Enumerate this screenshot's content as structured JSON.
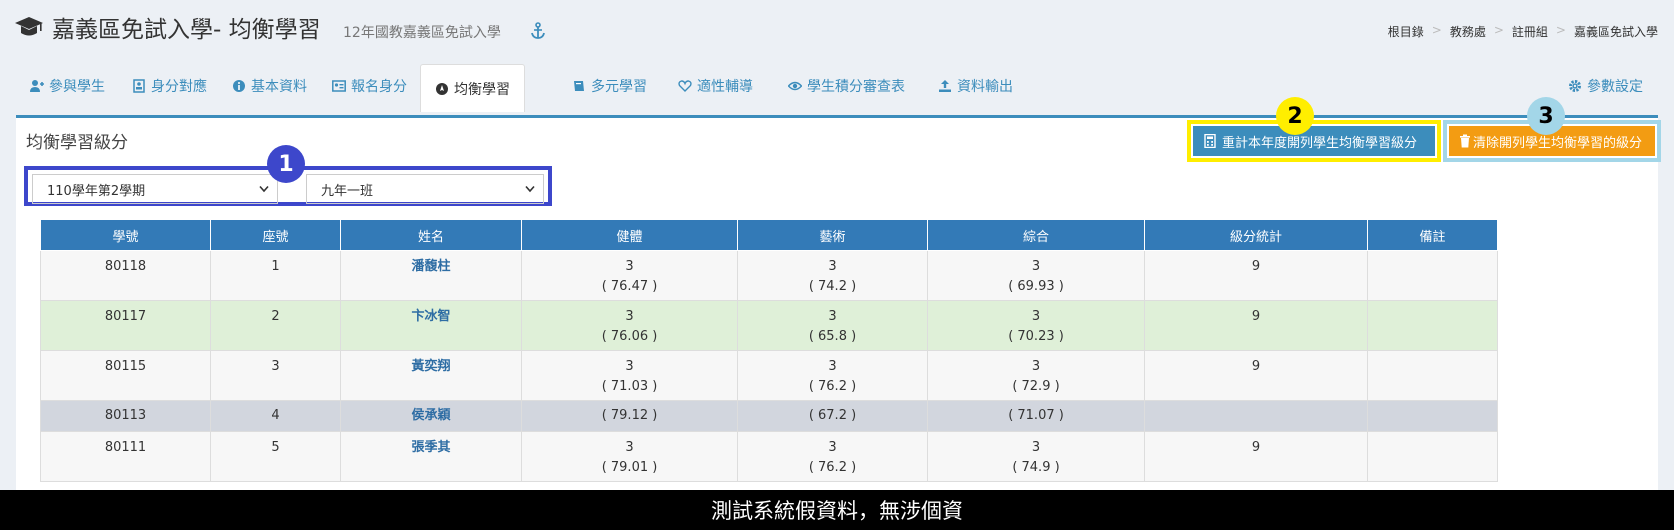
{
  "header": {
    "title": "嘉義區免試入學- 均衡學習",
    "subtitle": "12年國教嘉義區免試入學",
    "breadcrumb": [
      "根目錄",
      "教務處",
      "註冊組",
      "嘉義區免試入學"
    ]
  },
  "tabs": [
    {
      "label": "參與學生",
      "icon": "users-icon"
    },
    {
      "label": "身分對應",
      "icon": "id-card-icon"
    },
    {
      "label": "基本資料",
      "icon": "info-icon"
    },
    {
      "label": "報名身分",
      "icon": "vcard-icon"
    },
    {
      "label": "均衡學習",
      "icon": "compass-icon",
      "active": true
    },
    {
      "label": "多元學習",
      "icon": "book-icon"
    },
    {
      "label": "適性輔導",
      "icon": "heart-icon"
    },
    {
      "label": "學生積分審查表",
      "icon": "eye-icon"
    },
    {
      "label": "資料輸出",
      "icon": "upload-icon"
    },
    {
      "label": "參數設定",
      "icon": "gear-icon"
    }
  ],
  "panel": {
    "title": "均衡學習級分",
    "recalc_button": "重計本年度開列學生均衡學習級分",
    "clear_button": "清除開列學生均衡學習的級分",
    "term_select": "110學年第2學期",
    "class_select": "九年一班"
  },
  "badges": [
    "1",
    "2",
    "3"
  ],
  "table": {
    "headers": [
      "學號",
      "座號",
      "姓名",
      "健體",
      "藝術",
      "綜合",
      "級分統計",
      "備註"
    ],
    "rows": [
      {
        "id": "80118",
        "seat": "1",
        "name": "潘馥柱",
        "pe": "3",
        "pe_score": "( 76.47 )",
        "art": "3",
        "art_score": "( 74.2 )",
        "ip": "3",
        "ip_score": "( 69.93 )",
        "total": "9",
        "note": ""
      },
      {
        "id": "80117",
        "seat": "2",
        "name": "卞冰智",
        "pe": "3",
        "pe_score": "( 76.06 )",
        "art": "3",
        "art_score": "( 65.8 )",
        "ip": "3",
        "ip_score": "( 70.23 )",
        "total": "9",
        "note": ""
      },
      {
        "id": "80115",
        "seat": "3",
        "name": "黃奕翔",
        "pe": "3",
        "pe_score": "( 71.03 )",
        "art": "3",
        "art_score": "( 76.2 )",
        "ip": "3",
        "ip_score": "( 72.9 )",
        "total": "9",
        "note": ""
      },
      {
        "id": "80113",
        "seat": "4",
        "name": "侯承穎",
        "pe": "",
        "pe_score": "( 79.12 )",
        "art": "",
        "art_score": "( 67.2 )",
        "ip": "",
        "ip_score": "( 71.07 )",
        "total": "",
        "note": ""
      },
      {
        "id": "80111",
        "seat": "5",
        "name": "張季其",
        "pe": "3",
        "pe_score": "( 79.01 )",
        "art": "3",
        "art_score": "( 76.2 )",
        "ip": "3",
        "ip_score": "( 74.9 )",
        "total": "9",
        "note": ""
      }
    ]
  },
  "footer": "測試系統假資料，無涉個資",
  "colors": {
    "primary": "#3c8dbc",
    "warning": "#f39c12",
    "badge1": "#3d47cb",
    "badge2": "#ffee00",
    "badge3": "#a3d6e8"
  }
}
